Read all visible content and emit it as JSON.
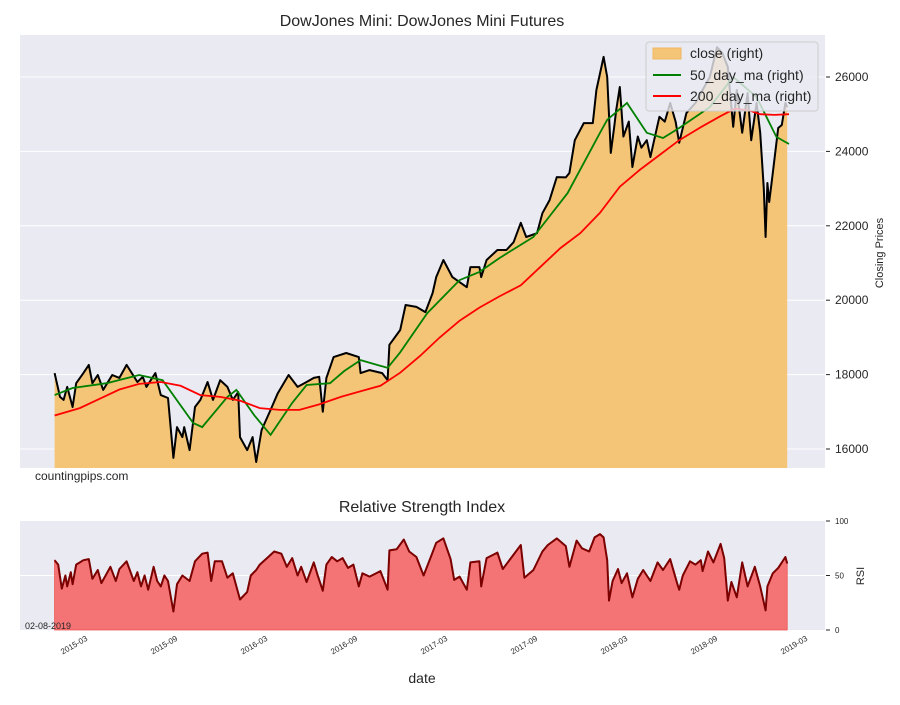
{
  "chart_data": [
    {
      "type": "area",
      "title": "DowJones Mini: DowJones Mini Futures",
      "xlabel": "",
      "ylabel": "Closing Prices",
      "ylim": [
        15490,
        27130
      ],
      "xlim_decimal_year": [
        2014.78,
        2019.25
      ],
      "yticks": [
        "16000",
        "18000",
        "20000",
        "22000",
        "24000",
        "26000"
      ],
      "grid": "horizontal",
      "legend_position": "top-right",
      "watermark": "countingpips.com",
      "legend": [
        "close (right)",
        "50_day_ma (right)",
        "200_day_ma (right)"
      ],
      "colors": {
        "close_fill": "#f5c577",
        "close_line": "#000000",
        "ma50": "#008000",
        "ma200": "#ff0000",
        "background": "#eaeaf2"
      },
      "series": [
        {
          "name": "close",
          "x": [
            2014.97,
            2015.0,
            2015.02,
            2015.04,
            2015.07,
            2015.09,
            2015.13,
            2015.16,
            2015.18,
            2015.21,
            2015.24,
            2015.29,
            2015.33,
            2015.37,
            2015.43,
            2015.46,
            2015.48,
            2015.53,
            2015.56,
            2015.6,
            2015.63,
            2015.65,
            2015.68,
            2015.69,
            2015.72,
            2015.75,
            2015.78,
            2015.82,
            2015.85,
            2015.89,
            2015.93,
            2015.96,
            2015.99,
            2016.0,
            2016.04,
            2016.07,
            2016.09,
            2016.12,
            2016.17,
            2016.21,
            2016.27,
            2016.32,
            2016.37,
            2016.41,
            2016.44,
            2016.46,
            2016.48,
            2016.52,
            2016.59,
            2016.66,
            2016.67,
            2016.72,
            2016.79,
            2016.82,
            2016.83,
            2016.89,
            2016.92,
            2016.98,
            2017.03,
            2017.07,
            2017.09,
            2017.13,
            2017.18,
            2017.26,
            2017.28,
            2017.33,
            2017.34,
            2017.37,
            2017.43,
            2017.48,
            2017.52,
            2017.56,
            2017.59,
            2017.65,
            2017.68,
            2017.72,
            2017.76,
            2017.81,
            2017.83,
            2017.86,
            2017.91,
            2017.96,
            2017.98,
            2018.02,
            2018.04,
            2018.06,
            2018.08,
            2018.09,
            2018.11,
            2018.13,
            2018.16,
            2018.18,
            2018.21,
            2018.23,
            2018.26,
            2018.28,
            2018.31,
            2018.33,
            2018.36,
            2018.39,
            2018.42,
            2018.44,
            2018.48,
            2018.53,
            2018.57,
            2018.61,
            2018.65,
            2018.68,
            2018.71,
            2018.74,
            2018.76,
            2018.79,
            2018.82,
            2018.84,
            2018.87,
            2018.89,
            2018.91,
            2018.92,
            2018.93,
            2018.94,
            2018.96,
            2018.99,
            2019.01,
            2019.03,
            2019.04
          ],
          "y": [
            18040,
            17400,
            17320,
            17670,
            17130,
            17770,
            18040,
            18260,
            17770,
            17990,
            17590,
            17990,
            17910,
            18260,
            17800,
            17940,
            17670,
            18040,
            17450,
            17370,
            15760,
            16590,
            16320,
            16590,
            15970,
            17130,
            17320,
            17800,
            17320,
            17850,
            17670,
            17320,
            17530,
            16320,
            15970,
            16320,
            15650,
            16510,
            17050,
            17500,
            17990,
            17670,
            17800,
            17910,
            17940,
            17000,
            17910,
            18470,
            18580,
            18470,
            18040,
            18120,
            18040,
            17850,
            18800,
            19200,
            19870,
            19820,
            19680,
            20190,
            20620,
            21080,
            20620,
            20350,
            20890,
            20890,
            20620,
            21080,
            21350,
            21350,
            21560,
            22080,
            21700,
            21800,
            22340,
            22690,
            23310,
            23300,
            23420,
            24300,
            24760,
            24760,
            25650,
            26540,
            26000,
            23960,
            24700,
            25110,
            25730,
            24400,
            24800,
            23580,
            24400,
            24100,
            24300,
            23850,
            24500,
            24930,
            24800,
            25300,
            24800,
            24230,
            25030,
            25300,
            25650,
            26000,
            26800,
            26640,
            26270,
            24660,
            25650,
            24500,
            25570,
            24300,
            25300,
            24500,
            23000,
            21700,
            23150,
            22640,
            23420,
            24630,
            24710,
            25300,
            25190
          ]
        },
        {
          "name": "50_day_ma",
          "x": [
            2014.97,
            2015.07,
            2015.26,
            2015.44,
            2015.57,
            2015.74,
            2015.79,
            2015.93,
            2015.98,
            2016.08,
            2016.17,
            2016.29,
            2016.37,
            2016.5,
            2016.58,
            2016.67,
            2016.82,
            2016.89,
            2017.04,
            2017.22,
            2017.33,
            2017.44,
            2017.63,
            2017.82,
            2018.0,
            2018.04,
            2018.15,
            2018.26,
            2018.35,
            2018.44,
            2018.61,
            2018.74,
            2018.87,
            2018.98,
            2019.05
          ],
          "y": [
            17450,
            17640,
            17770,
            17990,
            17850,
            16700,
            16590,
            17400,
            17590,
            16900,
            16380,
            17240,
            17720,
            17770,
            18100,
            18390,
            18180,
            18600,
            19650,
            20540,
            20760,
            21130,
            21700,
            22880,
            24500,
            24850,
            25300,
            24500,
            24360,
            24630,
            25190,
            26000,
            25460,
            24390,
            24200
          ]
        },
        {
          "name": "200_day_ma",
          "x": [
            2014.97,
            2015.11,
            2015.22,
            2015.33,
            2015.44,
            2015.56,
            2015.67,
            2015.78,
            2015.89,
            2016.0,
            2016.11,
            2016.22,
            2016.33,
            2016.44,
            2016.56,
            2016.67,
            2016.78,
            2016.89,
            2017.0,
            2017.11,
            2017.22,
            2017.33,
            2017.44,
            2017.56,
            2017.67,
            2017.78,
            2017.89,
            2018.0,
            2018.11,
            2018.22,
            2018.33,
            2018.44,
            2018.56,
            2018.67,
            2018.75,
            2018.83,
            2018.89,
            2018.97,
            2019.05
          ],
          "y": [
            16900,
            17100,
            17350,
            17600,
            17750,
            17800,
            17700,
            17450,
            17400,
            17300,
            17100,
            17050,
            17050,
            17200,
            17400,
            17550,
            17700,
            18050,
            18500,
            19000,
            19450,
            19800,
            20100,
            20400,
            20900,
            21400,
            21800,
            22350,
            23050,
            23500,
            23900,
            24300,
            24650,
            24950,
            25150,
            25100,
            25000,
            24980,
            25000
          ]
        }
      ]
    },
    {
      "type": "area",
      "title": "Relative Strength Index",
      "xlabel": "date",
      "ylabel": "RSI",
      "ylim": [
        0,
        100
      ],
      "yticks": [
        "0",
        "50",
        "100"
      ],
      "xticks": [
        "2015-03",
        "2015-09",
        "2016-03",
        "2016-09",
        "2017-03",
        "2017-09",
        "2018-03",
        "2018-09",
        "2019-03"
      ],
      "xtick_decimal_year": [
        2015.167,
        2015.667,
        2016.167,
        2016.667,
        2017.167,
        2017.667,
        2018.167,
        2018.667,
        2019.167
      ],
      "annotation": "02-08-2019",
      "colors": {
        "fill": "#f47476",
        "line": "#7b0000"
      },
      "series": [
        {
          "name": "RSI",
          "x": [
            2014.97,
            2014.99,
            2015.01,
            2015.03,
            2015.04,
            2015.06,
            2015.07,
            2015.09,
            2015.13,
            2015.16,
            2015.18,
            2015.21,
            2015.23,
            2015.28,
            2015.31,
            2015.33,
            2015.37,
            2015.41,
            2015.43,
            2015.45,
            2015.47,
            2015.49,
            2015.52,
            2015.54,
            2015.56,
            2015.58,
            2015.6,
            2015.63,
            2015.65,
            2015.68,
            2015.72,
            2015.75,
            2015.79,
            2015.82,
            2015.84,
            2015.86,
            2015.9,
            2015.93,
            2015.96,
            2016.0,
            2016.04,
            2016.06,
            2016.09,
            2016.11,
            2016.15,
            2016.19,
            2016.23,
            2016.26,
            2016.29,
            2016.32,
            2016.34,
            2016.37,
            2016.41,
            2016.43,
            2016.46,
            2016.48,
            2016.51,
            2016.54,
            2016.57,
            2016.6,
            2016.63,
            2016.66,
            2016.68,
            2016.72,
            2016.78,
            2016.82,
            2016.83,
            2016.87,
            2016.91,
            2016.94,
            2016.98,
            2017.02,
            2017.06,
            2017.09,
            2017.13,
            2017.17,
            2017.19,
            2017.22,
            2017.26,
            2017.28,
            2017.33,
            2017.34,
            2017.37,
            2017.43,
            2017.46,
            2017.56,
            2017.58,
            2017.63,
            2017.68,
            2017.71,
            2017.76,
            2017.81,
            2017.83,
            2017.87,
            2017.9,
            2017.94,
            2017.97,
            2018.0,
            2018.02,
            2018.04,
            2018.05,
            2018.07,
            2018.1,
            2018.12,
            2018.15,
            2018.18,
            2018.21,
            2018.24,
            2018.28,
            2018.32,
            2018.35,
            2018.39,
            2018.43,
            2018.44,
            2018.46,
            2018.5,
            2018.53,
            2018.56,
            2018.57,
            2018.6,
            2018.63,
            2018.67,
            2018.69,
            2018.71,
            2018.73,
            2018.76,
            2018.79,
            2018.82,
            2018.86,
            2018.89,
            2018.92,
            2018.93,
            2018.96,
            2018.99,
            2019.03,
            2019.04
          ],
          "y": [
            64,
            60,
            38,
            50,
            40,
            53,
            42,
            60,
            64,
            65,
            47,
            55,
            43,
            58,
            45,
            56,
            63,
            45,
            53,
            40,
            50,
            37,
            58,
            45,
            40,
            50,
            45,
            17,
            42,
            50,
            45,
            63,
            70,
            71,
            45,
            63,
            63,
            48,
            52,
            28,
            35,
            50,
            55,
            60,
            66,
            72,
            70,
            58,
            66,
            50,
            58,
            44,
            62,
            51,
            36,
            60,
            67,
            63,
            66,
            57,
            60,
            40,
            52,
            49,
            54,
            37,
            73,
            74,
            83,
            72,
            67,
            50,
            67,
            80,
            84,
            65,
            46,
            49,
            37,
            62,
            63,
            40,
            66,
            71,
            56,
            78,
            48,
            55,
            72,
            78,
            84,
            77,
            58,
            82,
            75,
            72,
            85,
            88,
            85,
            64,
            27,
            45,
            56,
            43,
            52,
            30,
            47,
            55,
            45,
            62,
            55,
            65,
            42,
            37,
            50,
            63,
            60,
            64,
            54,
            72,
            62,
            79,
            66,
            27,
            44,
            30,
            62,
            40,
            58,
            40,
            18,
            40,
            52,
            57,
            67,
            61
          ]
        }
      ]
    }
  ]
}
